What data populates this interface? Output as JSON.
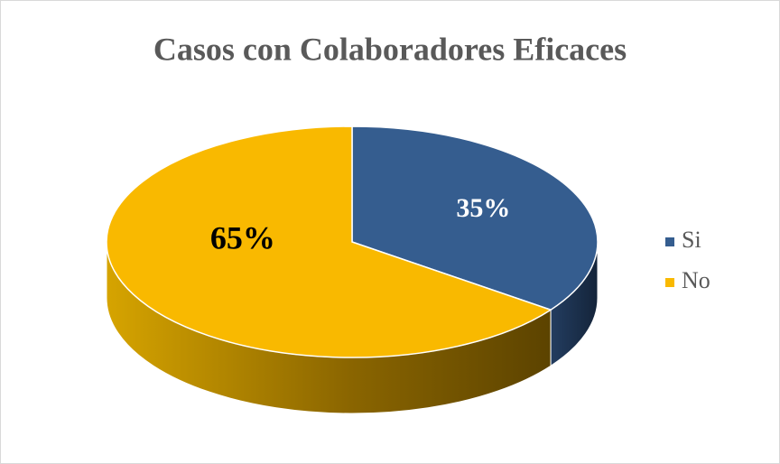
{
  "chart_data": {
    "type": "pie",
    "title": "Casos con Colaboradores Eficaces",
    "categories": [
      "Si",
      "No"
    ],
    "values": [
      35,
      65
    ],
    "value_labels": [
      "35%",
      "65%"
    ],
    "colors": [
      "#355d8f",
      "#f9b900"
    ],
    "legend": "right"
  }
}
